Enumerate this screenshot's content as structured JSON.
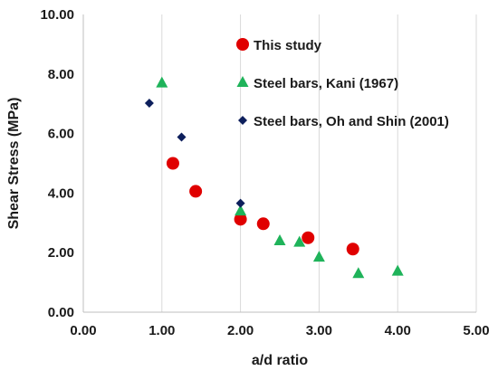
{
  "chart_data": {
    "type": "scatter",
    "title": "",
    "xlabel": "a/d ratio",
    "ylabel": "Shear Stress (MPa)",
    "xlim": [
      0,
      5
    ],
    "ylim": [
      0,
      10
    ],
    "x_ticks": [
      "0.00",
      "1.00",
      "2.00",
      "3.00",
      "4.00",
      "5.00"
    ],
    "y_ticks": [
      "0.00",
      "2.00",
      "4.00",
      "6.00",
      "8.00",
      "10.00"
    ],
    "grid": "vertical",
    "legend_position": "top-right",
    "series": [
      {
        "name": "This study",
        "marker": "circle",
        "color": "#e00000",
        "points": [
          {
            "x": 1.14,
            "y": 5.0
          },
          {
            "x": 1.43,
            "y": 4.06
          },
          {
            "x": 2.0,
            "y": 3.12
          },
          {
            "x": 2.29,
            "y": 2.97
          },
          {
            "x": 2.86,
            "y": 2.5
          },
          {
            "x": 3.43,
            "y": 2.12
          }
        ]
      },
      {
        "name": "Steel bars, Kani (1967)",
        "marker": "triangle",
        "color": "#1fb35a",
        "points": [
          {
            "x": 1.0,
            "y": 7.7
          },
          {
            "x": 2.0,
            "y": 3.4
          },
          {
            "x": 2.5,
            "y": 2.4
          },
          {
            "x": 2.75,
            "y": 2.35
          },
          {
            "x": 3.0,
            "y": 1.85
          },
          {
            "x": 3.5,
            "y": 1.3
          },
          {
            "x": 4.0,
            "y": 1.38
          }
        ]
      },
      {
        "name": "Steel bars, Oh and Shin (2001)",
        "marker": "diamond",
        "color": "#0d1f5c",
        "points": [
          {
            "x": 0.84,
            "y": 7.02
          },
          {
            "x": 1.25,
            "y": 5.88
          },
          {
            "x": 2.0,
            "y": 3.66
          }
        ]
      }
    ]
  }
}
